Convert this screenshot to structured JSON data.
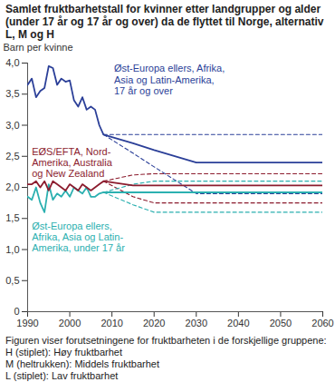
{
  "chart_data": {
    "type": "line",
    "title": "Samlet fruktbarhetstall for kvinner etter landgrupper og alder (under 17 år og 17 år og over) da de flyttet til Norge, alternativ L, M og H",
    "y_label": "Barn per kvinne",
    "caption": [
      "Figuren viser forutsetningene for fruktbarheten i de forskjellige gruppene:",
      "H (stiplet): Høy fruktbarhet",
      "M (heltrukken): Middels fruktbarhet",
      "L (stiplet): Lav fruktbarhet"
    ],
    "x": [
      1990,
      1991,
      1992,
      1993,
      1994,
      1995,
      1996,
      1997,
      1998,
      1999,
      2000,
      2001,
      2002,
      2003,
      2004,
      2005,
      2006,
      2007,
      2008,
      2015,
      2020,
      2030,
      2060
    ],
    "series": [
      {
        "name": "H",
        "color": "#2b3f98",
        "line_style": "dashed",
        "values": [
          null,
          null,
          null,
          null,
          null,
          null,
          null,
          null,
          null,
          null,
          null,
          null,
          null,
          null,
          null,
          null,
          null,
          null,
          2.85,
          2.85,
          2.85,
          2.85,
          2.85
        ]
      },
      {
        "name": "L",
        "color": "#2b3f98",
        "line_style": "dashed",
        "values": [
          null,
          null,
          null,
          null,
          null,
          null,
          null,
          null,
          null,
          null,
          null,
          null,
          null,
          null,
          null,
          null,
          null,
          null,
          2.85,
          2.55,
          2.33,
          1.9,
          1.9
        ]
      },
      {
        "name": "H",
        "color": "#8c1c2e",
        "line_style": "dashed",
        "values": [
          null,
          null,
          null,
          null,
          null,
          null,
          null,
          null,
          null,
          null,
          null,
          null,
          null,
          null,
          null,
          null,
          null,
          null,
          2.1,
          2.2,
          2.22,
          2.22,
          2.22
        ]
      },
      {
        "name": "L",
        "color": "#8c1c2e",
        "line_style": "dashed",
        "values": [
          null,
          null,
          null,
          null,
          null,
          null,
          null,
          null,
          null,
          null,
          null,
          null,
          null,
          null,
          null,
          null,
          null,
          null,
          2.1,
          1.85,
          1.75,
          1.75,
          1.75
        ]
      },
      {
        "name": "H",
        "color": "#2bb0b0",
        "line_style": "dashed",
        "values": [
          null,
          null,
          null,
          null,
          null,
          null,
          null,
          null,
          null,
          null,
          null,
          null,
          null,
          null,
          null,
          null,
          null,
          null,
          1.92,
          2.05,
          2.1,
          2.1,
          2.1
        ]
      },
      {
        "name": "L",
        "color": "#2bb0b0",
        "line_style": "dashed",
        "values": [
          null,
          null,
          null,
          null,
          null,
          null,
          null,
          null,
          null,
          null,
          null,
          null,
          null,
          null,
          null,
          null,
          null,
          null,
          1.92,
          1.72,
          1.6,
          1.6,
          1.6
        ]
      },
      {
        "name": "Øst-Europa ellers, Afrika, Asia og Latin-Amerika, under 17 år",
        "color": "#2bb0b0",
        "line_style": "solid",
        "values": [
          1.85,
          1.8,
          2.0,
          1.75,
          1.6,
          2.05,
          1.8,
          1.9,
          1.85,
          1.95,
          1.85,
          2.0,
          1.95,
          1.9,
          2.0,
          1.85,
          1.85,
          1.9,
          1.92,
          1.92,
          1.92,
          1.92,
          1.92
        ]
      },
      {
        "name": "EØS/EFTA, Nord-Amerika, Australia og New Zealand",
        "color": "#8c1c2e",
        "line_style": "solid",
        "values": [
          2.05,
          2.05,
          2.1,
          2.0,
          2.1,
          1.95,
          2.1,
          2.05,
          2.0,
          1.95,
          2.05,
          2.0,
          1.95,
          2.05,
          2.0,
          1.95,
          2.0,
          2.05,
          2.1,
          2.03,
          2.03,
          2.03,
          2.03
        ]
      },
      {
        "name": "Øst-Europa ellers, Afrika, Asia og Latin-Amerika, 17 år og over",
        "color": "#2b3f98",
        "line_style": "solid",
        "values": [
          3.65,
          3.75,
          3.45,
          3.55,
          3.6,
          3.95,
          3.92,
          3.65,
          3.75,
          3.7,
          3.72,
          3.4,
          3.3,
          3.45,
          3.25,
          3.3,
          3.25,
          3.0,
          2.85,
          2.71,
          2.6,
          2.4,
          2.4
        ]
      }
    ],
    "annotations": [
      {
        "text": "Øst-Europa ellers, Afrika,\nAsia og Latin-Amerika,\n17 år og over",
        "x": 2010.5,
        "y": 3.98,
        "color": "#2b3f98"
      },
      {
        "text": "EØS/EFTA, Nord-\nAmerika, Australia\nog New Zealand",
        "x": 1991,
        "y": 2.64,
        "color": "#8c1c2e"
      },
      {
        "text": "Øst-Europa ellers,\nAfrika, Asia og Latin-\nAmerika, under 17 år",
        "x": 1991,
        "y": 1.45,
        "color": "#2bb0b0"
      }
    ],
    "xlim": [
      1990,
      2060
    ],
    "xticks": [
      1990,
      2000,
      2010,
      2020,
      2030,
      2040,
      2050,
      2060
    ],
    "ylim": [
      0,
      4
    ],
    "yticks": [
      0,
      {
        "value": 0.5,
        "label": "0,5"
      },
      {
        "value": 1,
        "label": "1,0"
      },
      {
        "value": 1.5,
        "label": "1,5"
      },
      {
        "value": 2,
        "label": "2,0"
      },
      {
        "value": 2.5,
        "label": "2,5"
      },
      {
        "value": 3,
        "label": "3,0"
      },
      {
        "value": 3.5,
        "label": "3,5"
      },
      {
        "value": 4,
        "label": "4,0"
      }
    ],
    "grid": false
  }
}
